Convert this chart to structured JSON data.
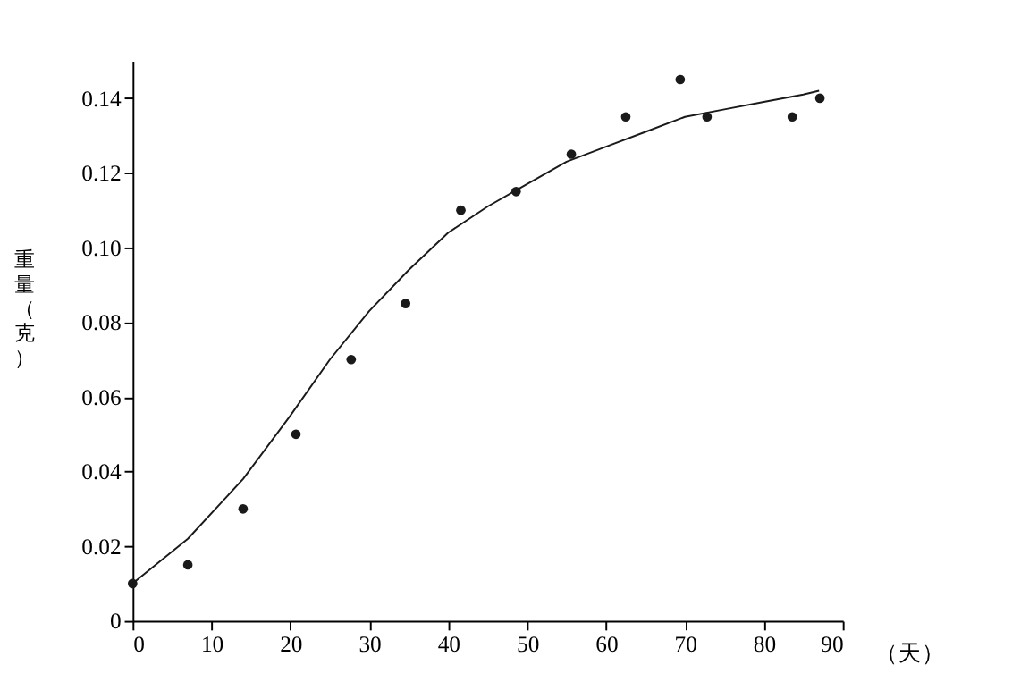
{
  "chart_data": {
    "type": "scatter",
    "xlabel": "（天）",
    "ylabel": "重量（克）",
    "xlim": [
      0,
      90
    ],
    "xticks": [
      0,
      10,
      20,
      30,
      40,
      50,
      60,
      70,
      80,
      90
    ],
    "ylim": [
      0,
      0.15
    ],
    "yticks": [
      0,
      {
        "value": 0.02,
        "label": "0.02"
      },
      {
        "value": 0.04,
        "label": "0.04"
      },
      {
        "value": 0.06,
        "label": "0.06"
      },
      {
        "value": 0.08,
        "label": "0.08"
      },
      {
        "value": 0.1,
        "label": "0.10"
      },
      {
        "value": 0.12,
        "label": "0.12"
      },
      {
        "value": 0.14,
        "label": "0.14"
      }
    ],
    "grid": false,
    "marker": "circle",
    "x": [
      0,
      7,
      14,
      20.7,
      27.7,
      34.6,
      41.6,
      48.6,
      55.6,
      62.5,
      69.4,
      72.8,
      83.6,
      87.1
    ],
    "series": [
      {
        "color": "#1a1a1a",
        "values": [
          0.01,
          0.015,
          0.03,
          0.05,
          0.07,
          0.085,
          0.11,
          0.115,
          0.125,
          0.135,
          0.145,
          0.135,
          0.135,
          0.14
        ]
      },
      {
        "type": "line",
        "color": "#1a1a1a",
        "line_style": "solid",
        "marker": "none",
        "x": [
          0,
          7,
          14,
          20,
          25,
          30,
          35,
          40,
          45,
          50,
          55,
          60,
          65,
          70,
          75,
          80,
          85,
          87
        ],
        "values": [
          0.01,
          0.022,
          0.038,
          0.055,
          0.07,
          0.083,
          0.094,
          0.104,
          0.111,
          0.117,
          0.123,
          0.127,
          0.131,
          0.135,
          0.137,
          0.139,
          0.141,
          0.142
        ]
      }
    ]
  }
}
